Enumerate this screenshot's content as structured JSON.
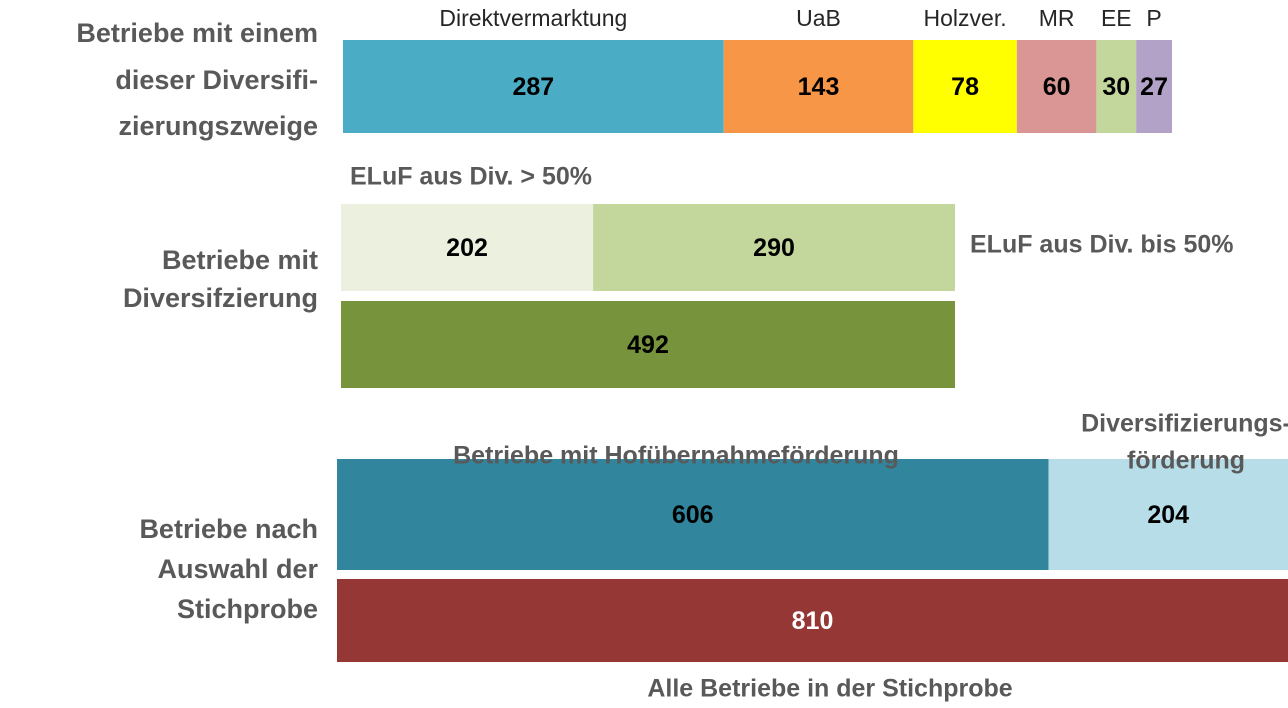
{
  "chart_data": [
    {
      "type": "stacked_bar",
      "label": [
        "Betriebe mit einem",
        "dieser Diversifi-",
        "zierungszweige"
      ],
      "series": [
        {
          "name": "Direktvermarktung",
          "color": "#4bacc6",
          "values": [
            287
          ]
        },
        {
          "name": "UaB",
          "color": "#f79646",
          "values": [
            143
          ]
        },
        {
          "name": "Holzver.",
          "color": "#ffff00",
          "values": [
            78
          ]
        },
        {
          "name": "MR",
          "color": "#d99694",
          "values": [
            60
          ]
        },
        {
          "name": "EE",
          "color": "#c3d69b",
          "values": [
            30
          ]
        },
        {
          "name": "P",
          "color": "#b3a2c7",
          "values": [
            27
          ]
        }
      ]
    },
    {
      "type": "stacked_bar",
      "label": [
        "Betriebe mit",
        "Diversifzierung"
      ],
      "series": [
        {
          "name": "ELuF aus Div. > 50%",
          "color": "#ebf1de",
          "values": [
            202
          ]
        },
        {
          "name": "ELuF aus Div. bis 50%",
          "color": "#c3d69b",
          "values": [
            290
          ]
        }
      ],
      "total": {
        "color": "#77933c",
        "value": 492
      }
    },
    {
      "type": "stacked_bar",
      "label": [
        "Betriebe nach",
        "Auswahl der",
        "Stichprobe"
      ],
      "series": [
        {
          "name": "Betriebe mit Hofübernahmeförderung",
          "color": "#31859c",
          "values": [
            606
          ]
        },
        {
          "name": [
            "Diversifizierungs-",
            "förderung"
          ],
          "color": "#b7dde8",
          "values": [
            204
          ]
        }
      ],
      "total": {
        "name": "Alle Betriebe in der Stichprobe",
        "color": "#953735",
        "value": 810
      }
    }
  ]
}
